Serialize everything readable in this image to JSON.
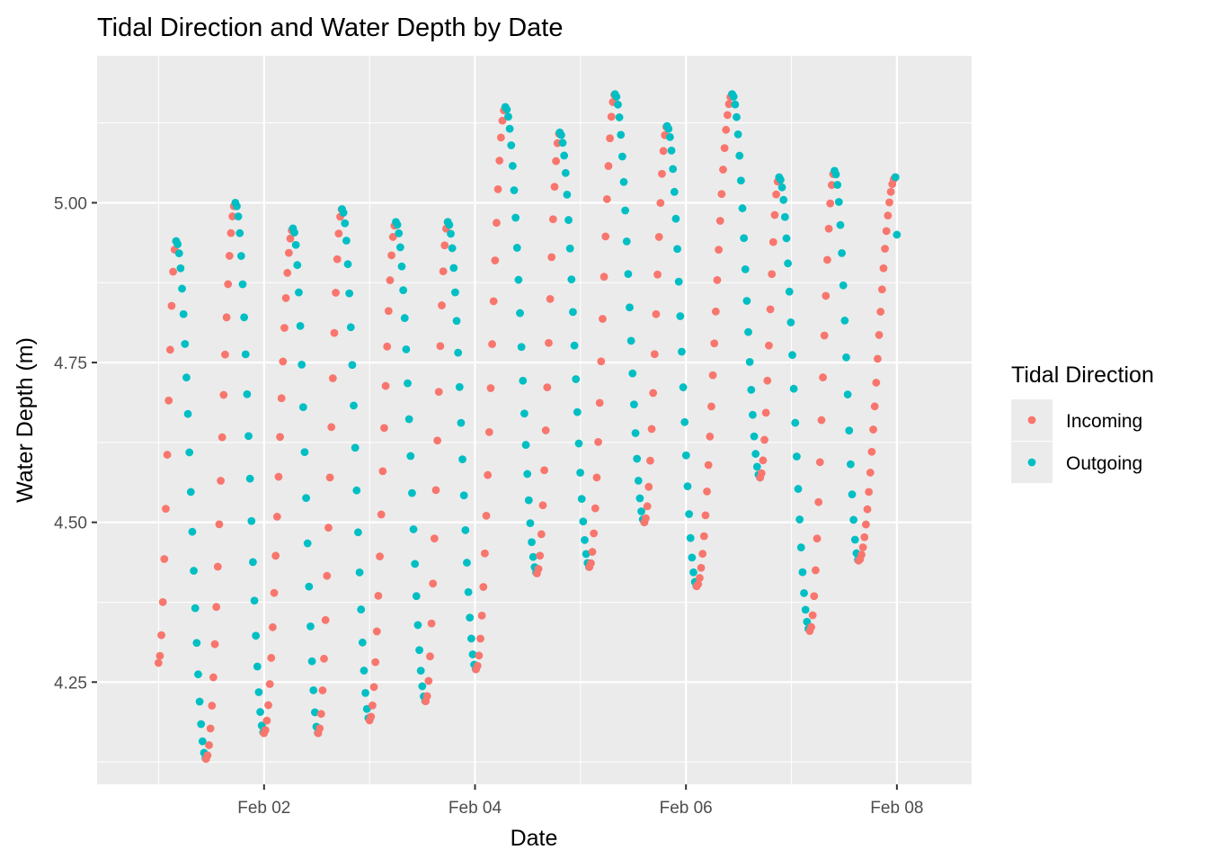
{
  "chart_data": {
    "type": "scatter",
    "title": "Tidal Direction and Water Depth by Date",
    "xlabel": "Date",
    "ylabel": "Water Depth (m)",
    "x_range": [
      "2024-01-31T10:00",
      "2024-02-08T17:00"
    ],
    "ylim": [
      4.09,
      5.23
    ],
    "x_ticks": [
      {
        "date": "2024-02-02T00:00",
        "label": "Feb 02"
      },
      {
        "date": "2024-02-04T00:00",
        "label": "Feb 04"
      },
      {
        "date": "2024-02-06T00:00",
        "label": "Feb 06"
      },
      {
        "date": "2024-02-08T00:00",
        "label": "Feb 08"
      }
    ],
    "x_minor_ticks": [
      "2024-02-01T00:00",
      "2024-02-03T00:00",
      "2024-02-05T00:00",
      "2024-02-07T00:00"
    ],
    "y_ticks": [
      4.25,
      4.5,
      4.75,
      5.0
    ],
    "y_tick_labels": [
      "4.25",
      "4.50",
      "4.75",
      "5.00"
    ],
    "y_minor_ticks": [
      4.125,
      4.375,
      4.625,
      4.875,
      5.125
    ],
    "grid": true,
    "legend": {
      "title": "Tidal Direction",
      "position": "right",
      "entries": [
        {
          "name": "Incoming",
          "color": "#F8766D"
        },
        {
          "name": "Outgoing",
          "color": "#00BFC4"
        }
      ]
    },
    "tidal_cycles": [
      {
        "low_time": "2024-01-31T23:58",
        "low_depth": 4.28,
        "high_time": "2024-02-01T04:00",
        "high_depth": 4.94
      },
      {
        "low_time": "2024-02-01T10:48",
        "low_depth": 4.13,
        "high_time": "2024-02-01T17:28",
        "high_depth": 5.0
      },
      {
        "low_time": "2024-02-01T23:58",
        "low_depth": 4.17,
        "high_time": "2024-02-02T06:34",
        "high_depth": 4.96
      },
      {
        "low_time": "2024-02-02T12:19",
        "low_depth": 4.17,
        "high_time": "2024-02-02T17:44",
        "high_depth": 4.99
      },
      {
        "low_time": "2024-02-03T00:00",
        "low_depth": 4.19,
        "high_time": "2024-02-03T06:00",
        "high_depth": 4.97
      },
      {
        "low_time": "2024-02-03T12:46",
        "low_depth": 4.22,
        "high_time": "2024-02-03T17:49",
        "high_depth": 4.97
      },
      {
        "low_time": "2024-02-04T00:14",
        "low_depth": 4.27,
        "high_time": "2024-02-04T06:54",
        "high_depth": 5.15
      },
      {
        "low_time": "2024-02-04T14:06",
        "low_depth": 4.42,
        "high_time": "2024-02-04T19:17",
        "high_depth": 5.11
      },
      {
        "low_time": "2024-02-05T02:02",
        "low_depth": 4.43,
        "high_time": "2024-02-05T07:51",
        "high_depth": 5.17
      },
      {
        "low_time": "2024-02-05T14:32",
        "low_depth": 4.5,
        "high_time": "2024-02-05T19:42",
        "high_depth": 5.12
      },
      {
        "low_time": "2024-02-06T02:27",
        "low_depth": 4.4,
        "high_time": "2024-02-06T10:31",
        "high_depth": 5.17
      },
      {
        "low_time": "2024-02-06T16:52",
        "low_depth": 4.57,
        "high_time": "2024-02-06T21:12",
        "high_depth": 5.04
      },
      {
        "low_time": "2024-02-07T04:10",
        "low_depth": 4.33,
        "high_time": "2024-02-07T09:48",
        "high_depth": 5.05
      },
      {
        "low_time": "2024-02-07T15:17",
        "low_depth": 4.44,
        "high_time": "2024-02-07T23:40",
        "high_depth": 5.04
      }
    ],
    "series": [
      {
        "name": "Incoming",
        "color": "#F8766D",
        "description": "rising limb of each tidal cycle (low to high)"
      },
      {
        "name": "Outgoing",
        "color": "#00BFC4",
        "description": "falling limb of each tidal cycle (high to next low)"
      }
    ],
    "final_point": {
      "time": "2024-02-08T00:00",
      "depth": 4.95
    }
  }
}
